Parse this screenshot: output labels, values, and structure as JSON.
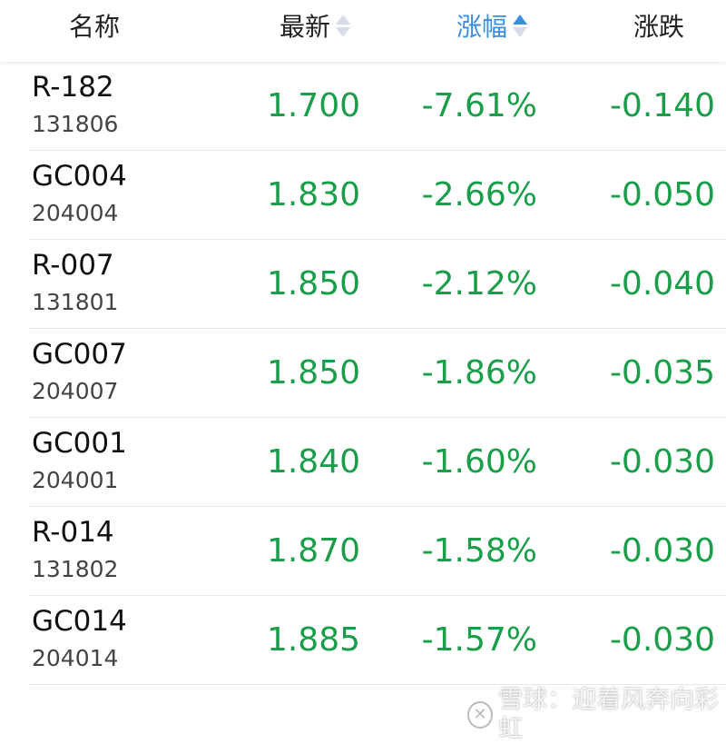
{
  "header": {
    "name": "名称",
    "latest": "最新",
    "change_pct": "涨幅",
    "change": "涨跌",
    "active_sort": "change_pct",
    "sort_direction": "ascending"
  },
  "colors": {
    "down": "#1a9e4a",
    "accent": "#3a8ee0"
  },
  "rows": [
    {
      "name": "R-182",
      "code": "131806",
      "price": "1.700",
      "pct": "-7.61%",
      "chg": "-0.140"
    },
    {
      "name": "GC004",
      "code": "204004",
      "price": "1.830",
      "pct": "-2.66%",
      "chg": "-0.050"
    },
    {
      "name": "R-007",
      "code": "131801",
      "price": "1.850",
      "pct": "-2.12%",
      "chg": "-0.040"
    },
    {
      "name": "GC007",
      "code": "204007",
      "price": "1.850",
      "pct": "-1.86%",
      "chg": "-0.035"
    },
    {
      "name": "GC001",
      "code": "204001",
      "price": "1.840",
      "pct": "-1.60%",
      "chg": "-0.030"
    },
    {
      "name": "R-014",
      "code": "131802",
      "price": "1.870",
      "pct": "-1.58%",
      "chg": "-0.030"
    },
    {
      "name": "GC014",
      "code": "204014",
      "price": "1.885",
      "pct": "-1.57%",
      "chg": "-0.030"
    }
  ],
  "watermark": "雪球：迎着风奔向彩虹"
}
